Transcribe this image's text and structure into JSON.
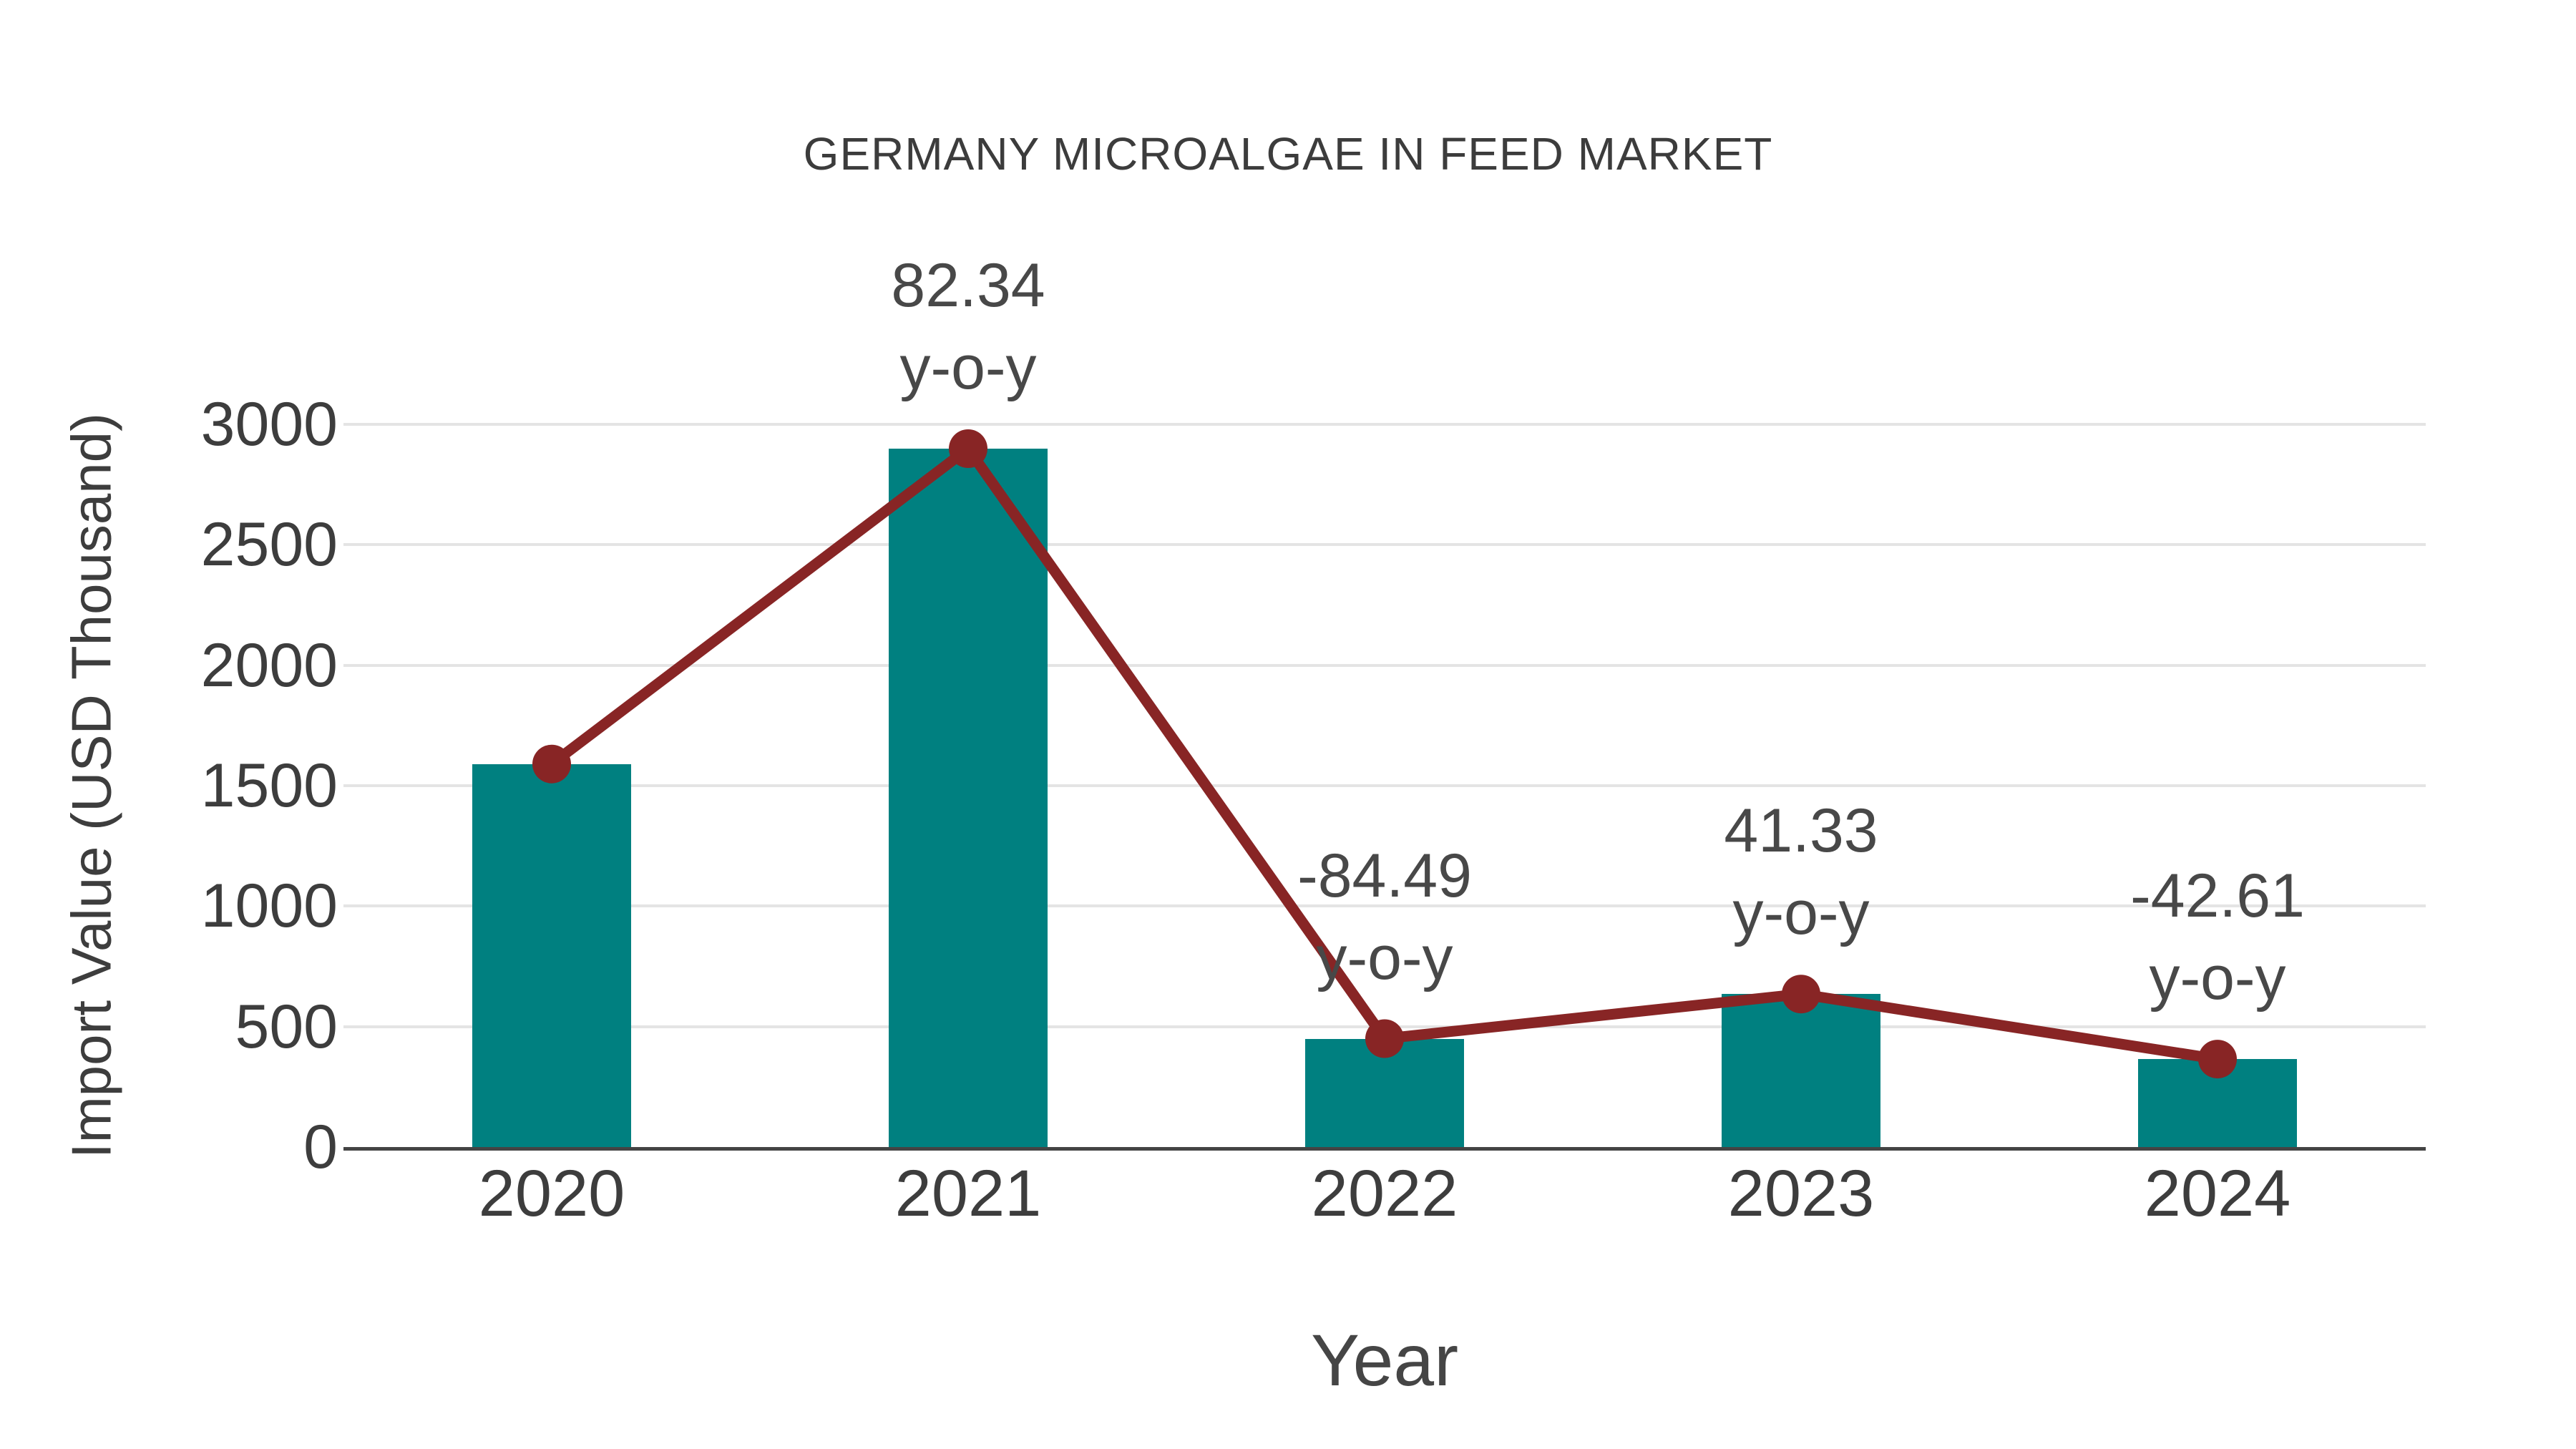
{
  "chart_data": {
    "type": "bar",
    "title": "GERMANY MICROALGAE IN FEED MARKET",
    "xlabel": "Year",
    "ylabel": "Import Value (USD Thousand)",
    "categories": [
      "2020",
      "2021",
      "2022",
      "2023",
      "2024"
    ],
    "ylim": [
      0,
      3000
    ],
    "yticks": [
      0,
      500,
      1000,
      1500,
      2000,
      2500,
      3000
    ],
    "grid": "horizontal",
    "legend": "none",
    "background": "#ffffff",
    "series": [
      {
        "name": "Import Value",
        "type": "bar",
        "color": "#008080",
        "values": [
          1590,
          2899,
          450,
          635,
          365
        ]
      },
      {
        "name": "Year-over-year change",
        "type": "line",
        "color": "#882525",
        "marker": "circle",
        "plotted_at_bar_tops": true,
        "values": [
          1590,
          2899,
          450,
          635,
          365
        ],
        "point_labels": [
          "",
          "82.34",
          "-84.49",
          "41.33",
          "-42.61"
        ],
        "point_label_suffix": "y-o-y"
      }
    ],
    "annotations": [
      {
        "x": "2021",
        "lines": [
          "82.34",
          "y-o-y"
        ]
      },
      {
        "x": "2022",
        "lines": [
          "-84.49",
          "y-o-y"
        ]
      },
      {
        "x": "2023",
        "lines": [
          "41.33",
          "y-o-y"
        ]
      },
      {
        "x": "2024",
        "lines": [
          "-42.61",
          "y-o-y"
        ]
      }
    ],
    "colors": {
      "bar": "#008080",
      "line": "#882525",
      "text": "#3d3d3d",
      "grid": "#e4e4e4",
      "axis": "#444444"
    }
  }
}
